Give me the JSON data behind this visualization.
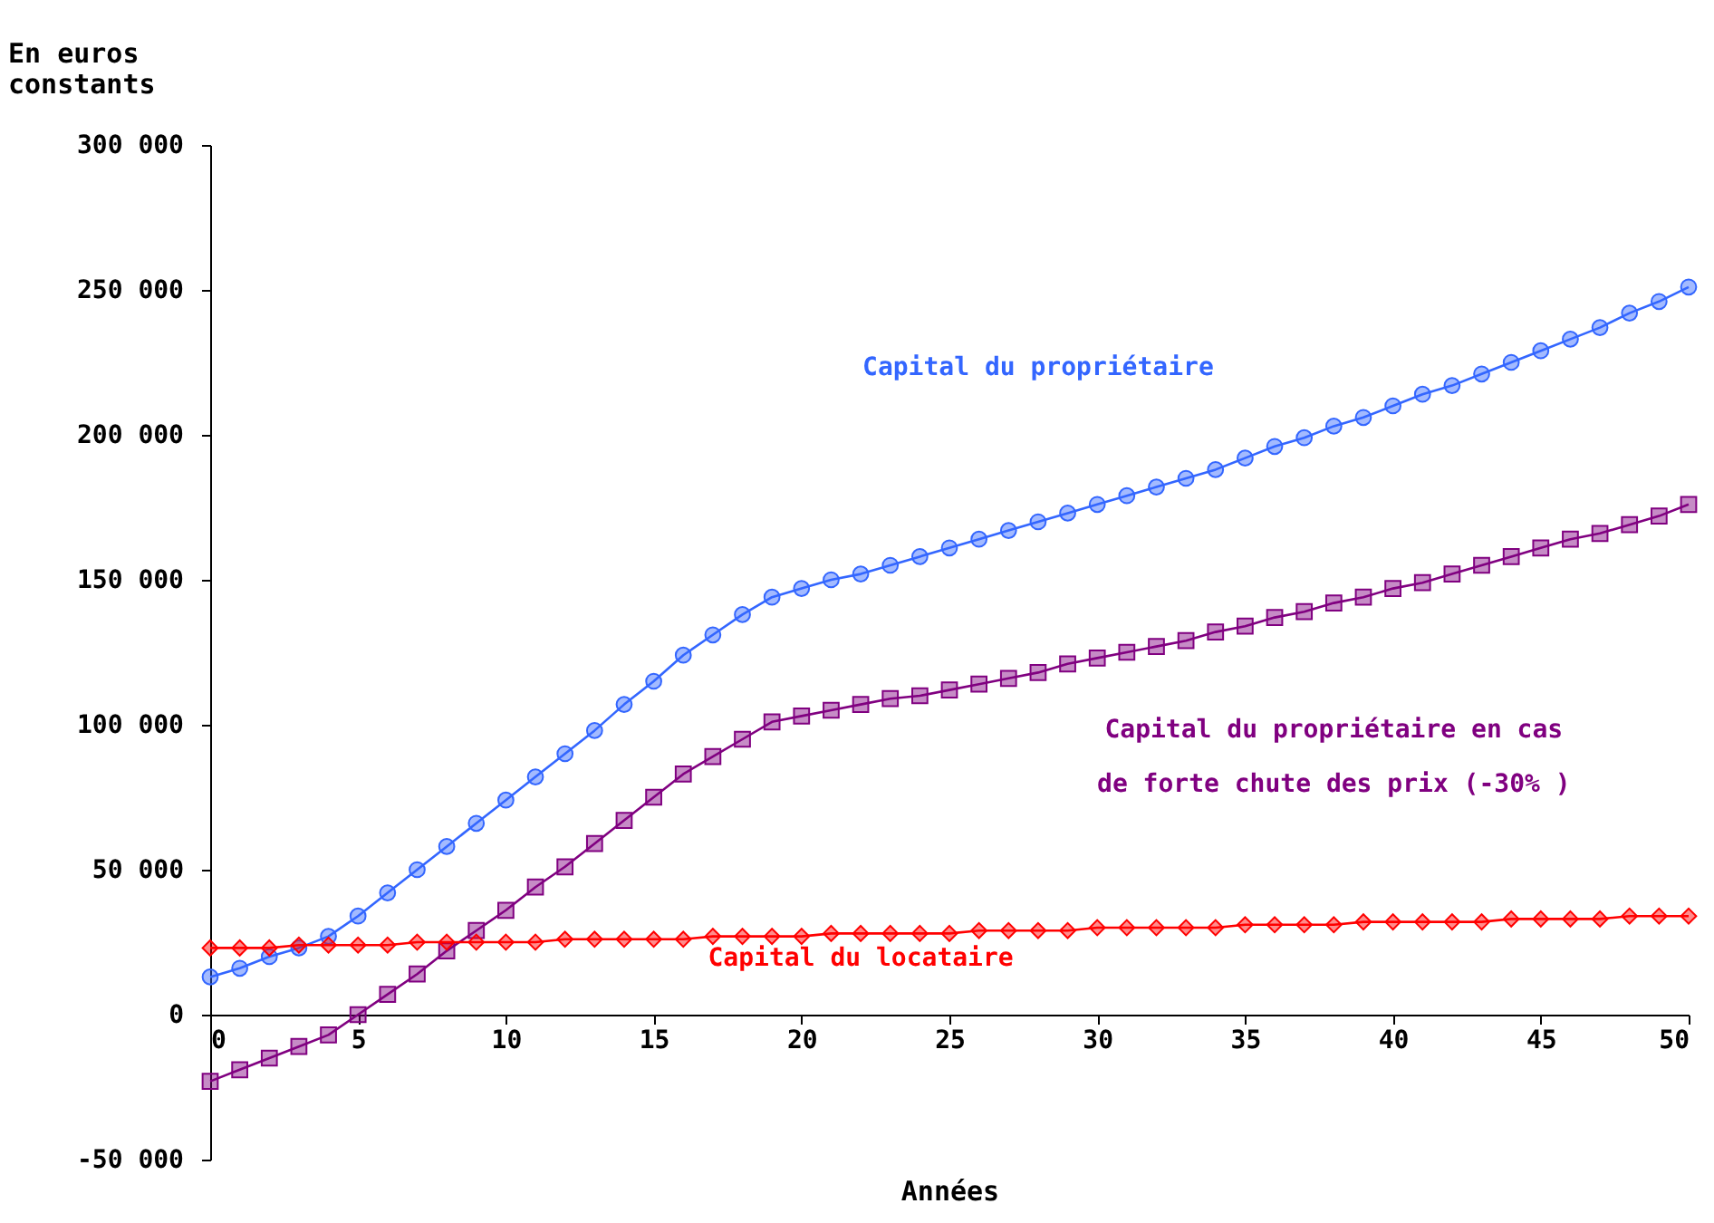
{
  "chart_data": {
    "type": "line",
    "xlabel": "Années",
    "ylabel": "En euros constants",
    "x": [
      0,
      1,
      2,
      3,
      4,
      5,
      6,
      7,
      8,
      9,
      10,
      11,
      12,
      13,
      14,
      15,
      16,
      17,
      18,
      19,
      20,
      21,
      22,
      23,
      24,
      25,
      26,
      27,
      28,
      29,
      30,
      31,
      32,
      33,
      34,
      35,
      36,
      37,
      38,
      39,
      40,
      41,
      42,
      43,
      44,
      45,
      46,
      47,
      48,
      49,
      50
    ],
    "series": [
      {
        "name": "Capital du propriétaire",
        "color": "#3366ff",
        "marker": "circle",
        "values": [
          13000,
          16000,
          20000,
          23000,
          27000,
          34000,
          42000,
          50000,
          58000,
          66000,
          74000,
          82000,
          90000,
          98000,
          107000,
          115000,
          124000,
          131000,
          138000,
          144000,
          147000,
          150000,
          152000,
          155000,
          158000,
          161000,
          164000,
          167000,
          170000,
          173000,
          176000,
          179000,
          182000,
          185000,
          188000,
          192000,
          196000,
          199000,
          203000,
          206000,
          210000,
          214000,
          217000,
          221000,
          225000,
          229000,
          233000,
          237000,
          242000,
          246000,
          251000
        ]
      },
      {
        "name": "Capital du propriétaire en cas\nde forte chute des prix (-30% )",
        "color": "#800080",
        "marker": "square",
        "values": [
          -23000,
          -19000,
          -15000,
          -11000,
          -7000,
          0,
          7000,
          14000,
          22000,
          29000,
          36000,
          44000,
          51000,
          59000,
          67000,
          75000,
          83000,
          89000,
          95000,
          101000,
          103000,
          105000,
          107000,
          109000,
          110000,
          112000,
          114000,
          116000,
          118000,
          121000,
          123000,
          125000,
          127000,
          129000,
          132000,
          134000,
          137000,
          139000,
          142000,
          144000,
          147000,
          149000,
          152000,
          155000,
          158000,
          161000,
          164000,
          166000,
          169000,
          172000,
          176000
        ]
      },
      {
        "name": "Capital du locataire",
        "color": "#ff0000",
        "marker": "diamond",
        "values": [
          23000,
          23000,
          23000,
          24000,
          24000,
          24000,
          24000,
          25000,
          25000,
          25000,
          25000,
          25000,
          26000,
          26000,
          26000,
          26000,
          26000,
          27000,
          27000,
          27000,
          27000,
          28000,
          28000,
          28000,
          28000,
          28000,
          29000,
          29000,
          29000,
          29000,
          30000,
          30000,
          30000,
          30000,
          30000,
          31000,
          31000,
          31000,
          31000,
          32000,
          32000,
          32000,
          32000,
          32000,
          33000,
          33000,
          33000,
          33000,
          34000,
          34000,
          34000
        ]
      }
    ],
    "xlim": [
      0,
      50
    ],
    "xticks": [
      0,
      5,
      10,
      15,
      20,
      25,
      30,
      35,
      40,
      45,
      50
    ],
    "ylim": [
      -50000,
      300000
    ],
    "yticks": [
      {
        "value": -50000,
        "label": "-50 000"
      },
      {
        "value": 0,
        "label": "0"
      },
      {
        "value": 50000,
        "label": "50 000"
      },
      {
        "value": 100000,
        "label": "100 000"
      },
      {
        "value": 150000,
        "label": "150 000"
      },
      {
        "value": 200000,
        "label": "200 000"
      },
      {
        "value": 250000,
        "label": "250 000"
      },
      {
        "value": 300000,
        "label": "300 000"
      }
    ],
    "grid": false
  }
}
